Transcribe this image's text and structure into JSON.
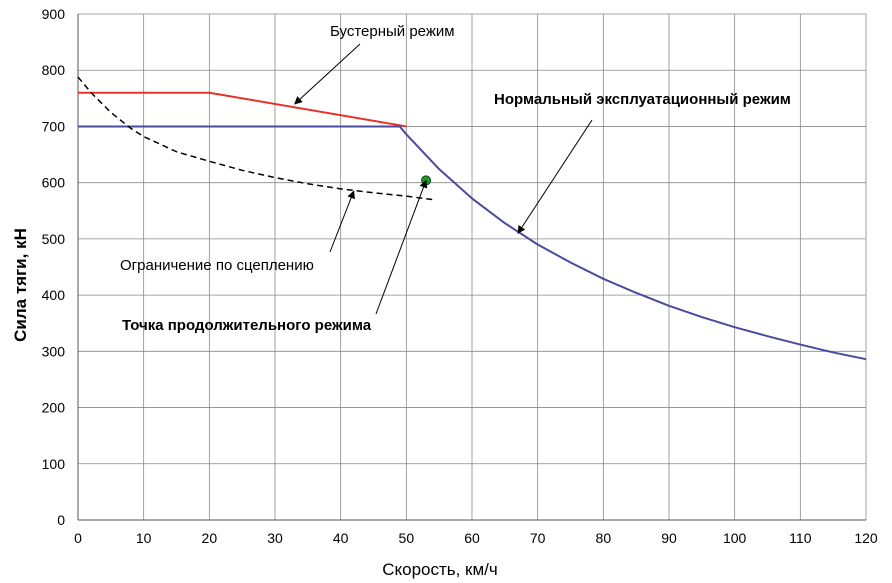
{
  "chart_data": {
    "type": "line",
    "title": "",
    "xlabel": "Скорость, км/ч",
    "ylabel": "Сила тяги, кН",
    "xlim": [
      0,
      120
    ],
    "ylim": [
      0,
      900
    ],
    "xticks": [
      0,
      10,
      20,
      30,
      40,
      50,
      60,
      70,
      80,
      90,
      100,
      110,
      120
    ],
    "yticks": [
      0,
      100,
      200,
      300,
      400,
      500,
      600,
      700,
      800,
      900
    ],
    "grid": true,
    "legend": "none",
    "series": [
      {
        "name": "Бустерный режим",
        "color": "#e8312a",
        "style": "solid",
        "x": [
          0,
          20,
          50
        ],
        "y": [
          760,
          760,
          700
        ]
      },
      {
        "name": "Нормальный эксплуатационный режим",
        "color": "#4a4a9e",
        "style": "solid",
        "x": [
          0,
          49,
          50,
          55,
          60,
          65,
          70,
          75,
          80,
          85,
          90,
          95,
          100,
          105,
          110,
          115,
          120
        ],
        "y": [
          700,
          700,
          686,
          624,
          572,
          528,
          490,
          458,
          429,
          404,
          381,
          361,
          343,
          327,
          312,
          298,
          286
        ]
      },
      {
        "name": "Ограничение по сцеплению",
        "color": "#000000",
        "style": "dashed",
        "x": [
          0,
          2,
          5,
          8,
          10,
          15,
          20,
          25,
          30,
          35,
          40,
          45,
          50,
          54
        ],
        "y": [
          788,
          760,
          725,
          697,
          682,
          655,
          638,
          622,
          609,
          598,
          589,
          582,
          576,
          570
        ]
      },
      {
        "name": "Точка продолжительного режима",
        "color": "#1a9a2a",
        "style": "point",
        "x": [
          53
        ],
        "y": [
          604
        ]
      }
    ],
    "annotations": [
      {
        "text": "Бустерный режим",
        "bold": false
      },
      {
        "text": "Нормальный эксплуатационный режим",
        "bold": true
      },
      {
        "text": "Ограничение по сцеплению",
        "bold": false
      },
      {
        "text": "Точка продолжительного режима",
        "bold": true
      }
    ]
  }
}
